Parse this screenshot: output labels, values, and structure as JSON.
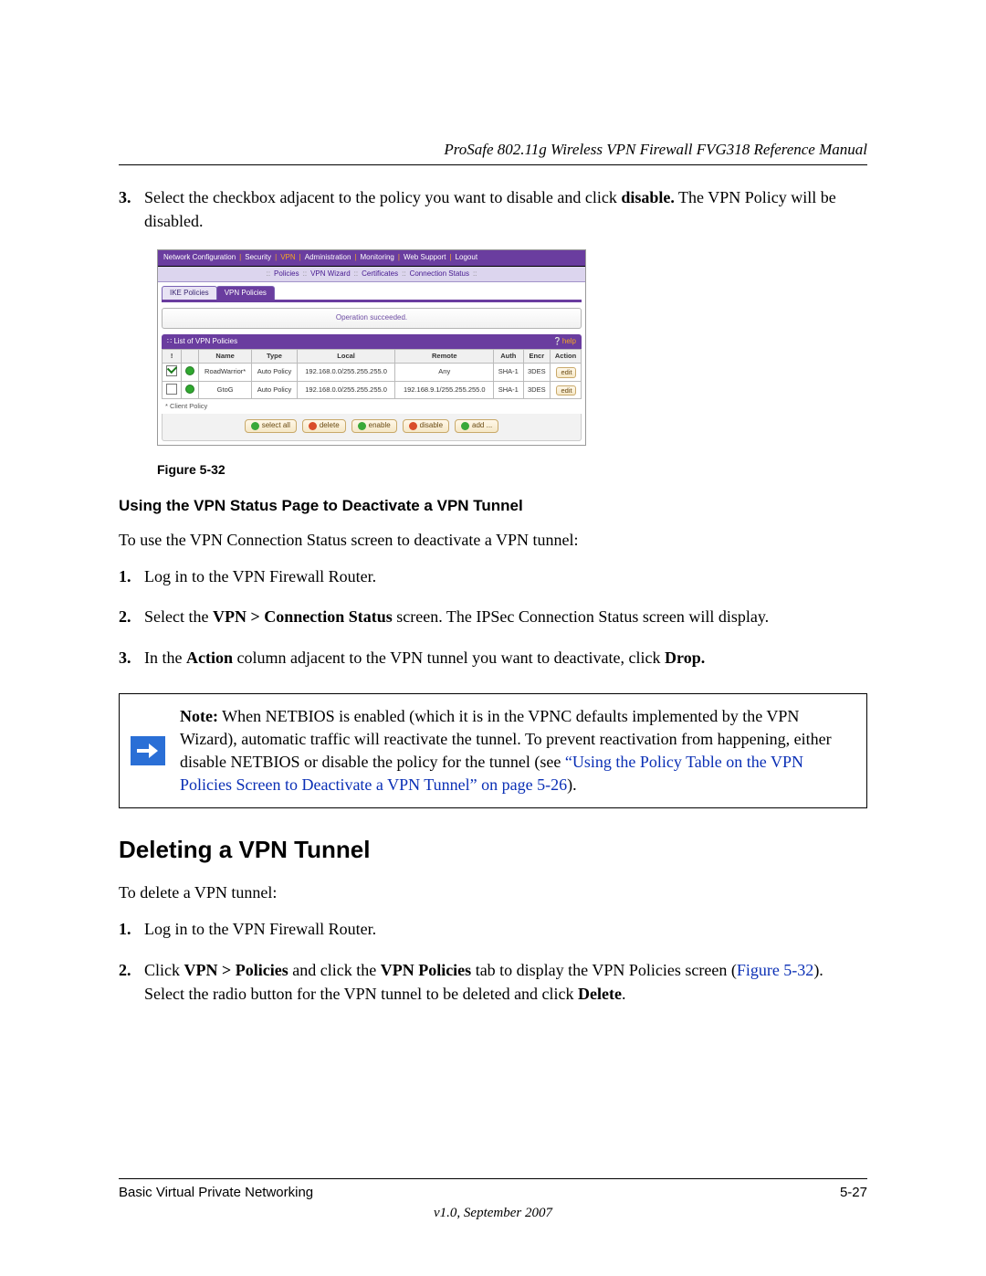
{
  "header": {
    "title": "ProSafe 802.11g Wireless VPN Firewall FVG318 Reference Manual"
  },
  "step3": {
    "num": "3.",
    "pre": "Select the checkbox adjacent to the policy you want to disable and click ",
    "bold": "disable.",
    "post": " The VPN Policy will be disabled."
  },
  "shot": {
    "nav1": [
      "Network Configuration",
      "Security",
      "VPN",
      "Administration",
      "Monitoring",
      "Web Support",
      "Logout"
    ],
    "nav1_hot_index": 2,
    "nav2": [
      "Policies",
      "VPN Wizard",
      "Certificates",
      "Connection Status"
    ],
    "tabs": {
      "inactive": "IKE Policies",
      "active": "VPN Policies"
    },
    "msg": "Operation succeeded.",
    "listTitle": "List of VPN Policies",
    "help": "help",
    "cols": [
      "!",
      "",
      "Name",
      "Type",
      "Local",
      "Remote",
      "Auth",
      "Encr",
      "Action"
    ],
    "rows": [
      {
        "checked": true,
        "name": "RoadWarrior*",
        "type": "Auto Policy",
        "local": "192.168.0.0/255.255.255.0",
        "remote": "Any",
        "auth": "SHA-1",
        "encr": "3DES",
        "action": "edit"
      },
      {
        "checked": false,
        "name": "GtoG",
        "type": "Auto Policy",
        "local": "192.168.0.0/255.255.255.0",
        "remote": "192.168.9.1/255.255.255.0",
        "auth": "SHA-1",
        "encr": "3DES",
        "action": "edit"
      }
    ],
    "footnote": "* Client Policy",
    "buttons": [
      "select all",
      "delete",
      "enable",
      "disable",
      "add ..."
    ]
  },
  "figcap": "Figure 5-32",
  "subheading": "Using the VPN Status Page to Deactivate a VPN Tunnel",
  "intro": "To use the VPN Connection Status screen to deactivate a VPN tunnel:",
  "bstep1": {
    "num": "1.",
    "txt": "Log in to the VPN Firewall Router."
  },
  "bstep2": {
    "num": "2.",
    "pre": "Select the ",
    "bold": "VPN > Connection Status",
    "post": " screen. The IPSec Connection Status screen will display."
  },
  "bstep3": {
    "num": "3.",
    "p1": "In the ",
    "b1": "Action",
    "p2": " column adjacent to the VPN tunnel you want to deactivate, click ",
    "b2": "Drop."
  },
  "note": {
    "b": "Note:",
    "p1": " When NETBIOS is enabled (which it is in the VPNC defaults implemented by the VPN Wizard), automatic traffic will reactivate the tunnel. To prevent reactivation from happening, either disable NETBIOS or disable the policy for the tunnel (see ",
    "link": "“Using the Policy Table on the VPN Policies Screen to Deactivate a VPN Tunnel” on page 5-26",
    "p2": ")."
  },
  "h2": "Deleting a VPN Tunnel",
  "d_intro": "To delete a VPN tunnel:",
  "dstep1": {
    "num": "1.",
    "txt": "Log in to the VPN Firewall Router."
  },
  "dstep2": {
    "num": "2.",
    "p1": "Click ",
    "b1": "VPN > Policies",
    "p2": " and click the ",
    "b2": "VPN Policies",
    "p3": " tab to display the VPN Policies screen (",
    "link": "Figure 5-32",
    "p4": "). Select the radio button for the VPN tunnel to be deleted and click ",
    "b3": "Delete",
    "p5": "."
  },
  "footer": {
    "left": "Basic Virtual Private Networking",
    "right": "5-27",
    "ver": "v1.0, September 2007"
  }
}
